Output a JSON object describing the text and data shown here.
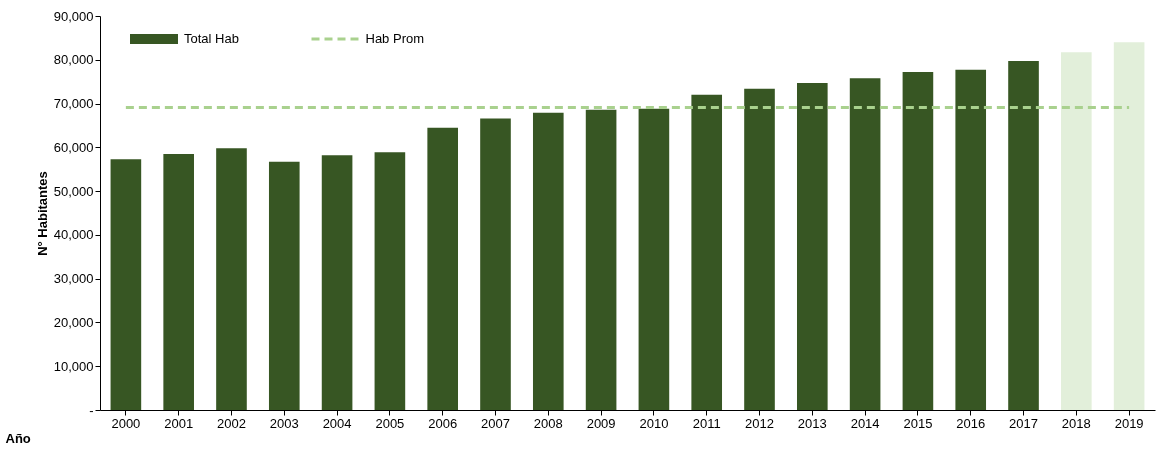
{
  "chart_data": {
    "type": "bar",
    "ylabel": "N° Habitantes",
    "xlabel": "Año",
    "categories": [
      "2000",
      "2001",
      "2002",
      "2003",
      "2004",
      "2005",
      "2006",
      "2007",
      "2008",
      "2009",
      "2010",
      "2011",
      "2012",
      "2013",
      "2014",
      "2015",
      "2016",
      "2017",
      "2018",
      "2019"
    ],
    "series": [
      {
        "name": "Total Hab",
        "color": "#375623",
        "colors": [
          "#375623",
          "#375623",
          "#375623",
          "#375623",
          "#375623",
          "#375623",
          "#375623",
          "#375623",
          "#375623",
          "#375623",
          "#375623",
          "#375623",
          "#375623",
          "#375623",
          "#375623",
          "#375623",
          "#375623",
          "#375623",
          "#e2efda",
          "#e2efda"
        ],
        "values": [
          57300,
          58500,
          59800,
          56700,
          58200,
          58900,
          64500,
          66600,
          67900,
          68600,
          68800,
          72000,
          73400,
          74700,
          75800,
          77200,
          77700,
          79700,
          81700,
          84000
        ]
      },
      {
        "name": "Hab Prom",
        "type": "line",
        "color": "#a9d18e",
        "line_style": "dashed",
        "values": [
          69100,
          69100,
          69100,
          69100,
          69100,
          69100,
          69100,
          69100,
          69100,
          69100,
          69100,
          69100,
          69100,
          69100,
          69100,
          69100,
          69100,
          69100,
          69100,
          69100
        ]
      }
    ],
    "ylim": [
      0,
      90000
    ],
    "yticks": [
      {
        "value": 0,
        "label": "-"
      },
      {
        "value": 10000,
        "label": "10,000"
      },
      {
        "value": 20000,
        "label": "20,000"
      },
      {
        "value": 30000,
        "label": "30,000"
      },
      {
        "value": 40000,
        "label": "40,000"
      },
      {
        "value": 50000,
        "label": "50,000"
      },
      {
        "value": 60000,
        "label": "60,000"
      },
      {
        "value": 70000,
        "label": "70,000"
      },
      {
        "value": 80000,
        "label": "80,000"
      },
      {
        "value": 90000,
        "label": "90,000"
      }
    ],
    "grid": false,
    "legend": "top left"
  }
}
